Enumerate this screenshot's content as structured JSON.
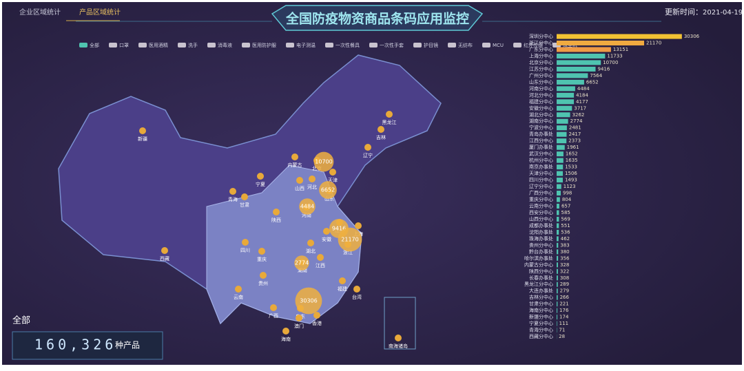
{
  "header": {
    "tabs": [
      "企业区域统计",
      "产品区域统计"
    ],
    "title": "全国防疫物资商品条码应用监控",
    "update_label": "更新时间：",
    "update_date": "2021-04-19"
  },
  "filters": [
    "全部",
    "口罩",
    "医用酒精",
    "洗手",
    "消毒液",
    "医用防护服",
    "电子测温",
    "一次性餐具",
    "一次性手套",
    "护目镜",
    "无纺布",
    "MCU",
    "红外传感",
    "成型机"
  ],
  "map": {
    "labels": [
      "新疆",
      "西藏",
      "青海",
      "甘肃",
      "宁夏",
      "内蒙古",
      "黑龙江",
      "吉林",
      "辽宁",
      "北京",
      "天津",
      "河北",
      "山西",
      "山东",
      "河南",
      "陕西",
      "四川",
      "重庆",
      "湖北",
      "安徽",
      "江苏",
      "上海",
      "浙江",
      "江西",
      "湖南",
      "贵州",
      "云南",
      "广西",
      "广东",
      "福建",
      "台湾",
      "香港",
      "澳门",
      "海南",
      "南海诸岛"
    ],
    "bubbles": [
      {
        "value": 10700
      },
      {
        "value": 6652
      },
      {
        "value": 4484
      },
      {
        "value": 9416
      },
      {
        "value": 21170
      },
      {
        "value": 2774
      },
      {
        "value": 30306
      }
    ]
  },
  "total": {
    "label": "全部",
    "value": "160,326",
    "unit": "种产品"
  },
  "chart_data": {
    "type": "hbar",
    "categories": [
      "深圳分中心",
      "浙江分中心",
      "广东分中心",
      "上海分中心",
      "北京分中心",
      "江苏分中心",
      "广州分中心",
      "山东分中心",
      "河南分中心",
      "河北分中心",
      "福建分中心",
      "安徽分中心",
      "湖北分中心",
      "湖南分中心",
      "宁波分中心",
      "青岛办事处",
      "江西分中心",
      "厦门办事处",
      "武汉分中心",
      "杭州分中心",
      "南京办事处",
      "天津分中心",
      "四川分中心",
      "辽宁分中心",
      "广西分中心",
      "重庆分中心",
      "云南分中心",
      "西安分中心",
      "山西分中心",
      "成都办事处",
      "沈阳办事处",
      "珠海办事处",
      "贵州分中心",
      "黔台办事处",
      "哈尔滨办事处",
      "内蒙古分中心",
      "陕西分中心",
      "长春办事处",
      "黑龙江分中心",
      "大连办事处",
      "吉林分中心",
      "甘肃分中心",
      "海南分中心",
      "新疆分中心",
      "宁夏分中心",
      "青海分中心",
      "西藏分中心"
    ],
    "values": [
      30306,
      21170,
      13151,
      11733,
      10700,
      9416,
      7564,
      6652,
      4484,
      4184,
      4177,
      3717,
      3262,
      2774,
      2481,
      2417,
      2373,
      1961,
      1652,
      1635,
      1533,
      1506,
      1493,
      1123,
      998,
      804,
      657,
      585,
      569,
      551,
      536,
      462,
      383,
      380,
      356,
      328,
      322,
      308,
      289,
      279,
      266,
      221,
      176,
      174,
      111,
      71,
      28
    ],
    "colors": [
      "#f2c233",
      "#f0aa40",
      "#ef9a45",
      "#4fc4b0",
      "#4fc4b0",
      "#4fc4b0",
      "#4fc4b0",
      "#4fc4b0",
      "#4fc4b0",
      "#4fc4b0",
      "#4fc4b0",
      "#4fc4b0",
      "#4fc4b0",
      "#4fc4b0",
      "#4fc4b0",
      "#4fc4b0",
      "#4fc4b0",
      "#4fc4b0",
      "#4fc4b0",
      "#4fc4b0",
      "#4fc4b0",
      "#4fc4b0",
      "#4fc4b0",
      "#4fc4b0",
      "#4fc4b0",
      "#4fc4b0",
      "#4fc4b0",
      "#4fc4b0",
      "#4fc4b0",
      "#4fc4b0",
      "#4fc4b0",
      "#4fc4b0",
      "#4fc4b0",
      "#4fc4b0",
      "#4fc4b0",
      "#4fc4b0",
      "#4fc4b0",
      "#4fc4b0",
      "#4fc4b0",
      "#4fc4b0",
      "#4fc4b0",
      "#4fc4b0",
      "#4fc4b0",
      "#4fc4b0",
      "#4fc4b0",
      "#4fc4b0",
      "#4fc4b0"
    ],
    "xlim": [
      0,
      32000
    ]
  }
}
